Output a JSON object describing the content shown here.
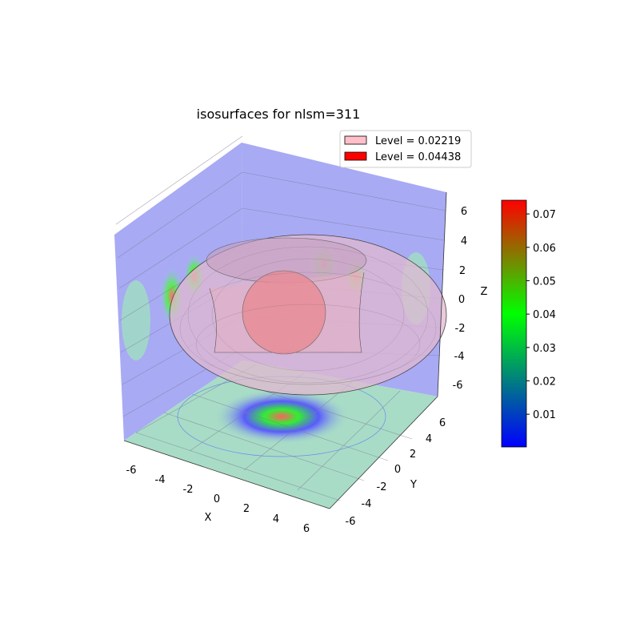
{
  "chart_data": {
    "type": "3d-isosurface",
    "title": "isosurfaces for nlsm=311",
    "xlabel": "X",
    "ylabel": "Y",
    "zlabel": "Z",
    "xlim": [
      -7,
      7
    ],
    "ylim": [
      -7,
      7
    ],
    "zlim": [
      -7,
      7
    ],
    "x_ticks": [
      "-6",
      "-4",
      "-2",
      "0",
      "2",
      "4",
      "6"
    ],
    "y_ticks": [
      "-6",
      "-4",
      "-2",
      "0",
      "2",
      "4",
      "6"
    ],
    "z_ticks": [
      "6",
      "4",
      "2",
      "0",
      "-2",
      "-4",
      "-6"
    ],
    "grid": true,
    "legend": {
      "placement": "top-right",
      "entries": [
        {
          "label": "Level = 0.02219",
          "color": "#ffc0cb"
        },
        {
          "label": "Level = 0.04438",
          "color": "#ff0000"
        }
      ]
    },
    "colorbar": {
      "range": [
        0.0002,
        0.0741
      ],
      "ticks": [
        "0.07",
        "0.06",
        "0.05",
        "0.04",
        "0.03",
        "0.02",
        "0.01"
      ],
      "tick_values": [
        0.07,
        0.06,
        0.05,
        0.04,
        0.03,
        0.02,
        0.01
      ],
      "colors": [
        "#0000ff",
        "#00ff00",
        "#ff0000"
      ]
    }
  }
}
